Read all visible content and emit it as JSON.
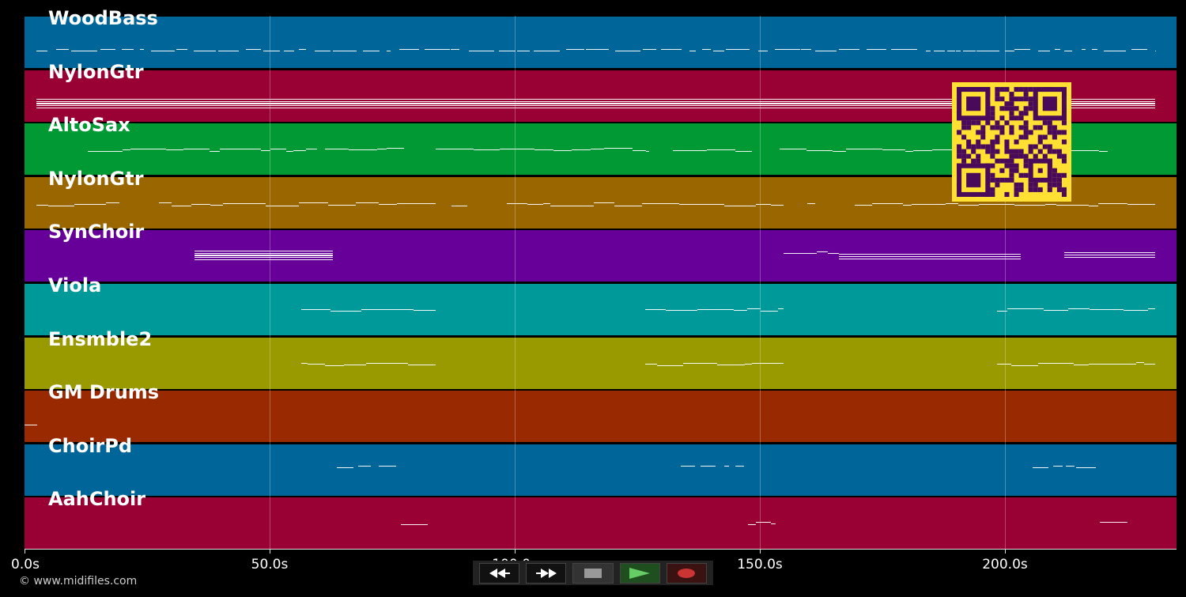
{
  "timeline": {
    "max_seconds": 235,
    "ticks": [
      {
        "seconds": 0,
        "label": "0.0s"
      },
      {
        "seconds": 50,
        "label": "50.0s"
      },
      {
        "seconds": 100,
        "label": "100.0s"
      },
      {
        "seconds": 150,
        "label": "150.0s"
      },
      {
        "seconds": 200,
        "label": "200.0s"
      }
    ]
  },
  "tracks": [
    {
      "name": "WoodBass",
      "color": "#006699"
    },
    {
      "name": "NylonGtr",
      "color": "#990033"
    },
    {
      "name": "AltoSax",
      "color": "#009933"
    },
    {
      "name": "NylonGtr",
      "color": "#996600"
    },
    {
      "name": "SynChoir",
      "color": "#660099"
    },
    {
      "name": "Viola",
      "color": "#009999"
    },
    {
      "name": "Ensmble2",
      "color": "#999900"
    },
    {
      "name": "GM Drums",
      "color": "#992900"
    },
    {
      "name": "ChoirPd",
      "color": "#006699"
    },
    {
      "name": "AahChoir",
      "color": "#990033"
    }
  ],
  "transport": {
    "rewind": "rewind-icon",
    "fast_forward": "fast-forward-icon",
    "stop": "stop-icon",
    "play": "play-icon",
    "record": "record-icon"
  },
  "footer": {
    "copyright": "© www.midifiles.com"
  },
  "qr_code": {
    "color": "#ffe033",
    "background": "#4a0a5a"
  }
}
